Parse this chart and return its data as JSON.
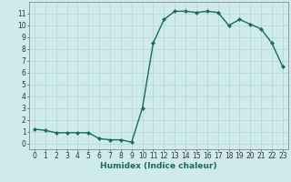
{
  "x": [
    0,
    1,
    2,
    3,
    4,
    5,
    6,
    7,
    8,
    9,
    10,
    11,
    12,
    13,
    14,
    15,
    16,
    17,
    18,
    19,
    20,
    21,
    22,
    23
  ],
  "y": [
    1.2,
    1.1,
    0.9,
    0.9,
    0.9,
    0.9,
    0.4,
    0.3,
    0.3,
    0.1,
    3.0,
    8.5,
    10.5,
    11.2,
    11.2,
    11.1,
    11.2,
    11.1,
    10.0,
    10.5,
    10.1,
    9.7,
    8.5,
    6.5
  ],
  "xlabel": "Humidex (Indice chaleur)",
  "xlim": [
    -0.5,
    23.5
  ],
  "ylim": [
    -0.5,
    12.0
  ],
  "yticks": [
    0,
    1,
    2,
    3,
    4,
    5,
    6,
    7,
    8,
    9,
    10,
    11
  ],
  "xticks": [
    0,
    1,
    2,
    3,
    4,
    5,
    6,
    7,
    8,
    9,
    10,
    11,
    12,
    13,
    14,
    15,
    16,
    17,
    18,
    19,
    20,
    21,
    22,
    23
  ],
  "line_color": "#1a6b5a",
  "marker": "D",
  "marker_size": 2.0,
  "line_width": 1.0,
  "bg_color": "#ceeaea",
  "grid_color": "#b8d8d8",
  "tick_label_fontsize": 5.5,
  "xlabel_fontsize": 6.5
}
